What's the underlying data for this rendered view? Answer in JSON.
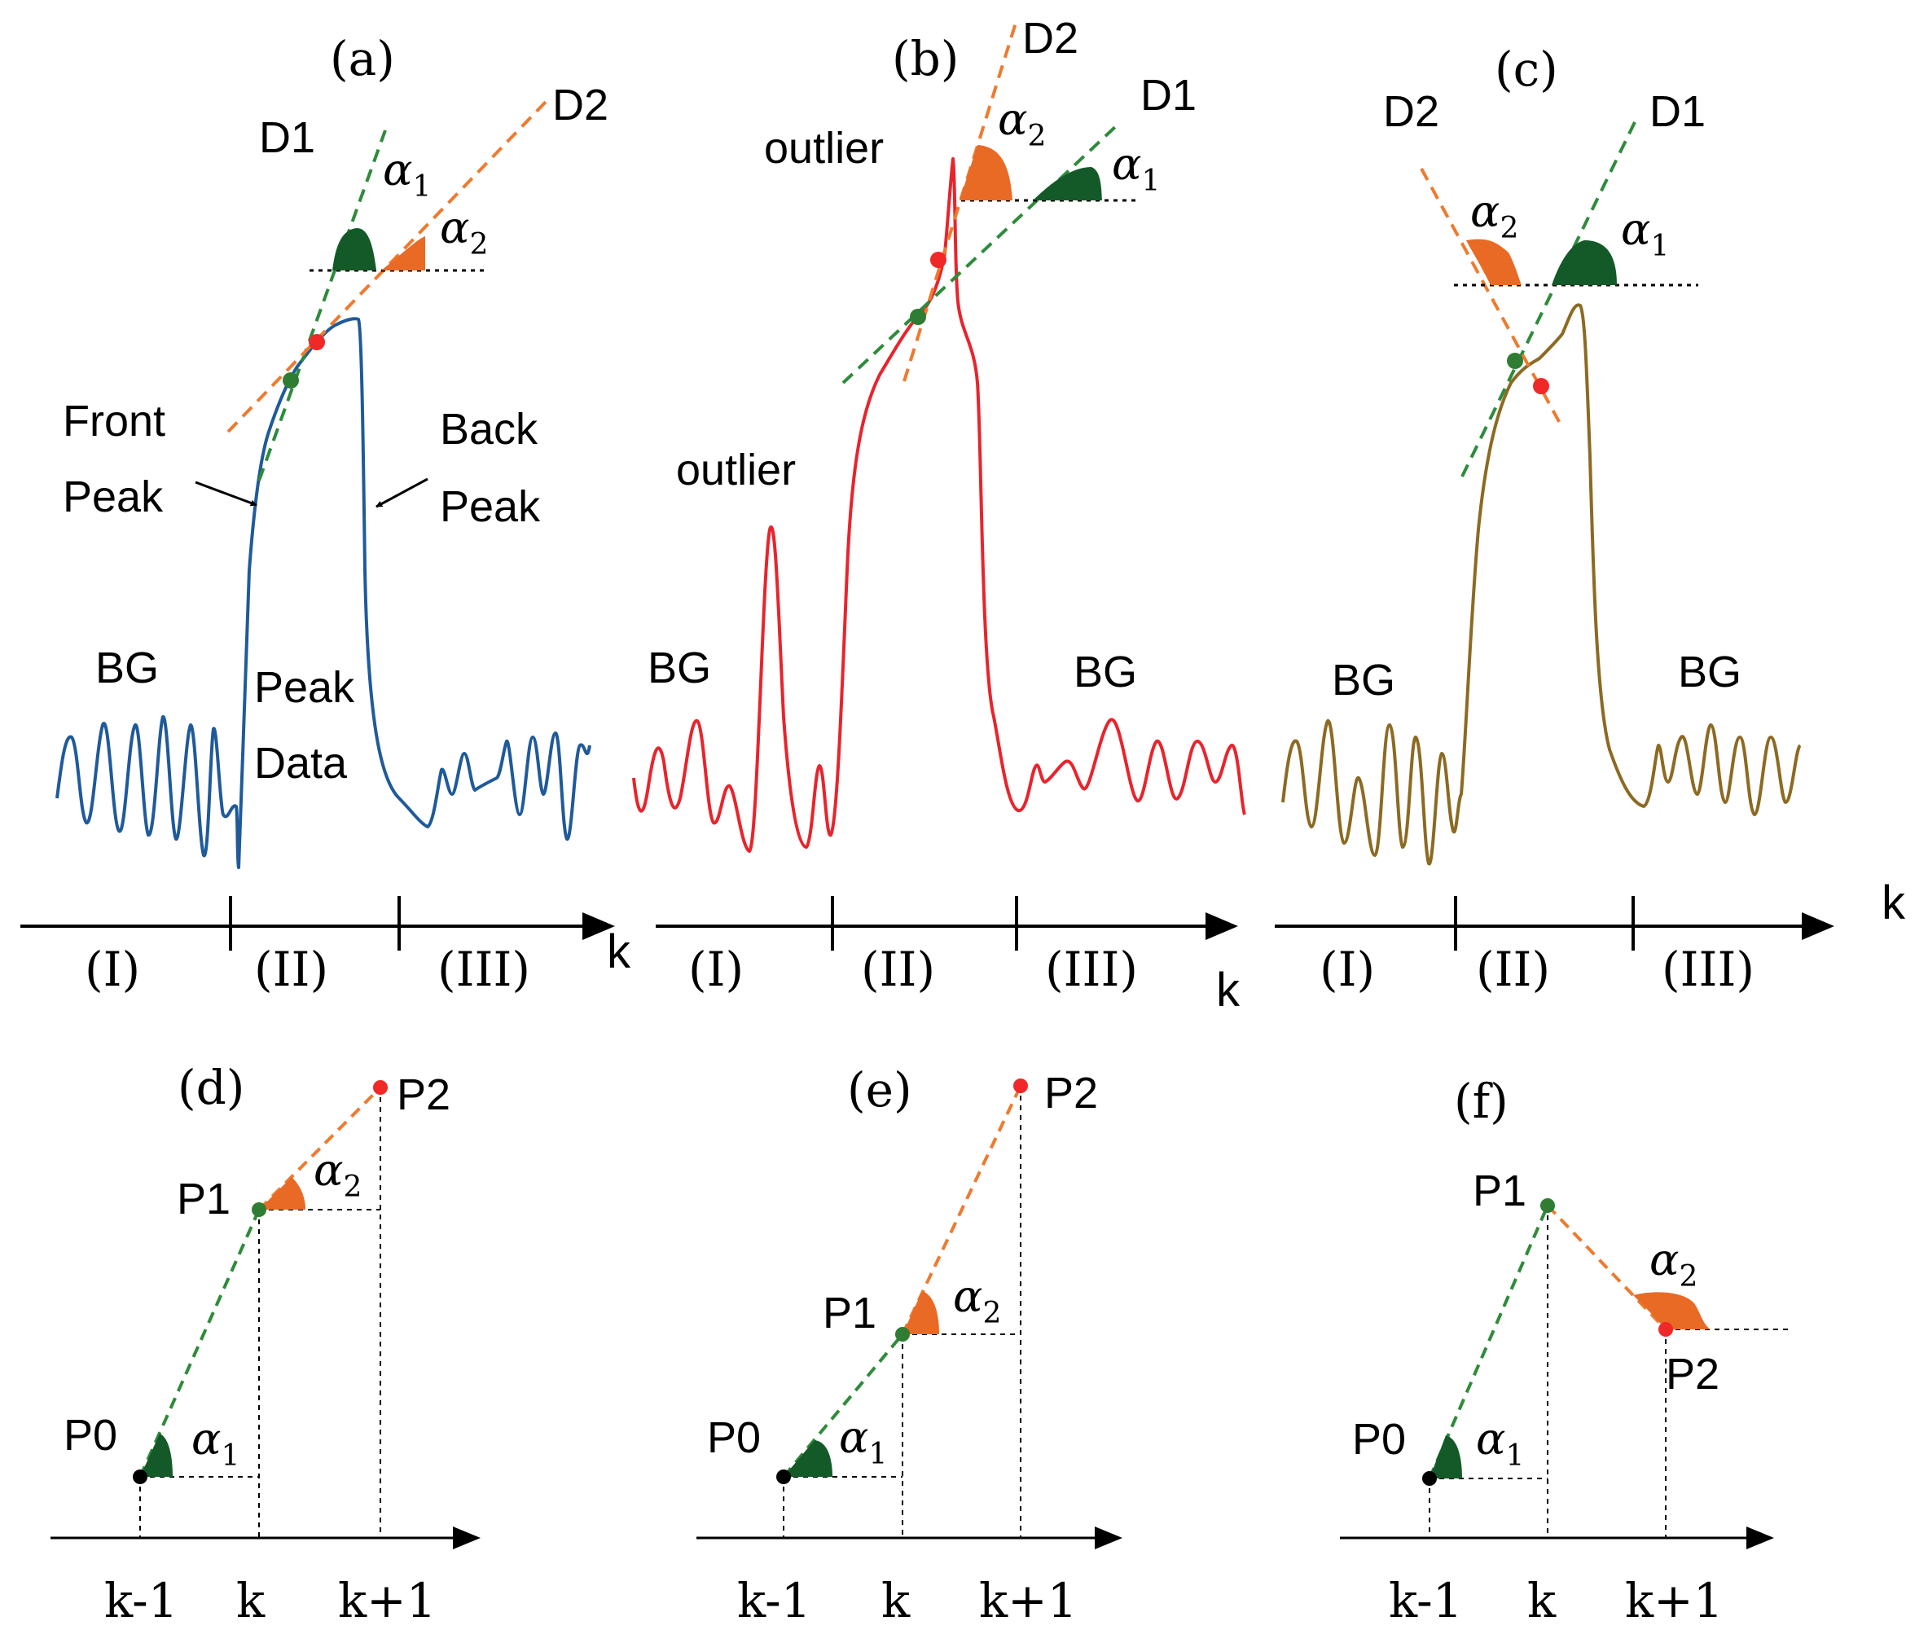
{
  "figure": {
    "colors": {
      "panel_a_curve": "#1f5a9a",
      "panel_b_curve": "#e8242c",
      "panel_c_curve": "#8c6a22",
      "line_d1": "#2e8b3a",
      "line_d2": "#ef7a2e",
      "angle_alpha1": "#145a28",
      "angle_alpha2": "#e86a24",
      "point_red": "#f02828",
      "point_green": "#2e7d32",
      "point_black": "#000000",
      "axis": "#000000"
    },
    "panels": {
      "a": {
        "label": "(a)",
        "d1": "D1",
        "d2": "D2",
        "alpha": "α",
        "sub1": "1",
        "sub2": "2",
        "front_peak_1": "Front",
        "front_peak_2": "Peak",
        "back_peak_1": "Back",
        "back_peak_2": "Peak",
        "bg": "BG",
        "peak_data_1": "Peak",
        "peak_data_2": "Data",
        "region_1": "(I)",
        "region_2": "(II)",
        "region_3": "(III)",
        "axis_label": "k"
      },
      "b": {
        "label": "(b)",
        "d1": "D1",
        "d2": "D2",
        "alpha": "α",
        "sub1": "1",
        "sub2": "2",
        "outlier_top": "outlier",
        "outlier_left": "outlier",
        "bg": "BG",
        "region_1": "(I)",
        "region_2": "(II)",
        "region_3": "(III)",
        "axis_label": "k"
      },
      "c": {
        "label": "(c)",
        "d1": "D1",
        "d2": "D2",
        "alpha": "α",
        "sub1": "1",
        "sub2": "2",
        "bg_left": "BG",
        "bg_right": "BG",
        "region_1": "(I)",
        "region_2": "(II)",
        "region_3": "(III)",
        "axis_label": "k"
      },
      "d": {
        "label": "(d)",
        "p0": "P0",
        "p1": "P1",
        "p2": "P2",
        "alpha": "α",
        "sub1": "1",
        "sub2": "2",
        "tick_1": "k-1",
        "tick_2": "k",
        "tick_3": "k+1"
      },
      "e": {
        "label": "(e)",
        "p0": "P0",
        "p1": "P1",
        "p2": "P2",
        "alpha": "α",
        "sub1": "1",
        "sub2": "2",
        "tick_1": "k-1",
        "tick_2": "k",
        "tick_3": "k+1"
      },
      "f": {
        "label": "(f)",
        "p0": "P0",
        "p1": "P1",
        "p2": "P2",
        "alpha": "α",
        "sub1": "1",
        "sub2": "2",
        "tick_1": "k-1",
        "tick_2": "k",
        "tick_3": "k+1"
      }
    }
  }
}
